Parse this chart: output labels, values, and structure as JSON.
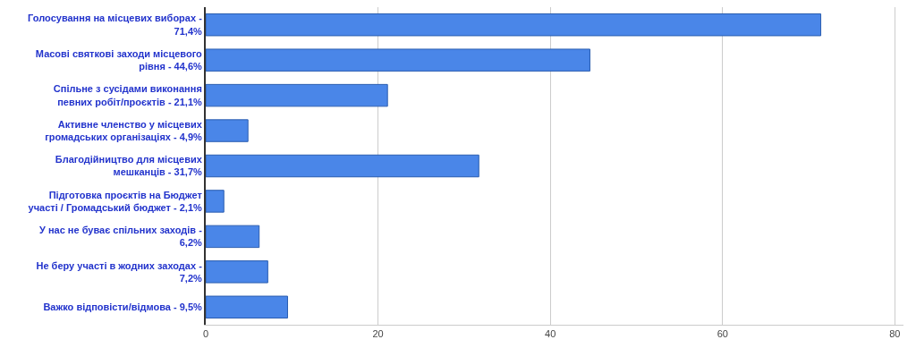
{
  "chart_data": {
    "type": "bar",
    "orientation": "horizontal",
    "categories": [
      "Голосування на місцевих виборах - 71,4%",
      "Масові святкові заходи місцевого рівня - 44,6%",
      "Спільне з сусідами виконання певних робіт/проєктів - 21,1%",
      "Активне членство у місцевих громадських організаціях - 4,9%",
      "Благодійництво для місцевих мешканців - 31,7%",
      "Підготовка проєктів на Бюджет участі / Громадський бюджет - 2,1%",
      "У нас не буває спільних заходів - 6,2%",
      "Не беру участі в жодних заходах - 7,2%",
      "Важко відповісти/відмова - 9,5%"
    ],
    "values": [
      71.4,
      44.6,
      21.1,
      4.9,
      31.7,
      2.1,
      6.2,
      7.2,
      9.5
    ],
    "color": "#4a86e8",
    "xlim": [
      0,
      81
    ],
    "xticks": [
      0,
      20,
      40,
      60,
      80
    ],
    "grid": "x",
    "legend": false
  }
}
